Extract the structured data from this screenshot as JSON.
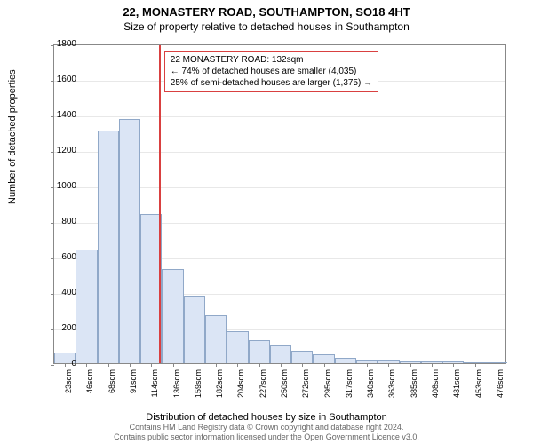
{
  "title_main": "22, MONASTERY ROAD, SOUTHAMPTON, SO18 4HT",
  "title_sub": "Size of property relative to detached houses in Southampton",
  "ylabel": "Number of detached properties",
  "xlabel": "Distribution of detached houses by size in Southampton",
  "footer1": "Contains HM Land Registry data © Crown copyright and database right 2024.",
  "footer2": "Contains public sector information licensed under the Open Government Licence v3.0.",
  "chart": {
    "type": "histogram",
    "ylim": [
      0,
      1800
    ],
    "yticks": [
      0,
      200,
      400,
      600,
      800,
      1000,
      1200,
      1400,
      1600,
      1800
    ],
    "xticks": [
      "23sqm",
      "46sqm",
      "68sqm",
      "91sqm",
      "114sqm",
      "136sqm",
      "159sqm",
      "182sqm",
      "204sqm",
      "227sqm",
      "250sqm",
      "272sqm",
      "295sqm",
      "317sqm",
      "340sqm",
      "363sqm",
      "385sqm",
      "408sqm",
      "431sqm",
      "453sqm",
      "476sqm"
    ],
    "values": [
      60,
      640,
      1310,
      1375,
      840,
      530,
      380,
      270,
      180,
      130,
      100,
      70,
      50,
      30,
      22,
      18,
      12,
      10,
      8,
      5,
      3
    ],
    "bar_fill": "#dbe5f5",
    "bar_stroke": "#90a8c8",
    "grid_color": "#e8e8e8",
    "background_color": "#ffffff",
    "marker_color": "#d94040",
    "marker_x_index": 4.85
  },
  "annotation": {
    "line1": "22 MONASTERY ROAD: 132sqm",
    "line2": "← 74% of detached houses are smaller (4,035)",
    "line3": "25% of semi-detached houses are larger (1,375) →",
    "border_color": "#d94040"
  }
}
